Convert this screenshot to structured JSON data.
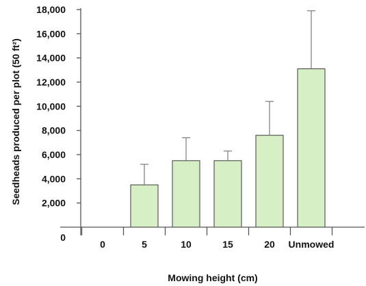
{
  "chart_data": {
    "type": "bar",
    "xlabel": "Mowing height (cm)",
    "ylabel": "Seedheads produced per plot (50 ft²)",
    "categories": [
      "0",
      "5",
      "10",
      "15",
      "20",
      "Unmowed"
    ],
    "values": [
      0,
      3500,
      5500,
      5500,
      7600,
      13100
    ],
    "error_upper": [
      0,
      5200,
      7400,
      6300,
      10400,
      17900
    ],
    "ylim": [
      0,
      18000
    ],
    "yticks": [
      0,
      2000,
      4000,
      6000,
      8000,
      10000,
      12000,
      14000,
      16000,
      18000
    ],
    "ytick_labels": [
      "0",
      "2,000",
      "4,000",
      "6,000",
      "8,000",
      "10,000",
      "12,000",
      "14,000",
      "16,000",
      "18,000"
    ],
    "grid": false,
    "colors": {
      "bar_fill": "#d6efc4",
      "bar_stroke": "#3a3a3a",
      "error_bar": "#7a7a7a",
      "axis": "#555555"
    }
  }
}
